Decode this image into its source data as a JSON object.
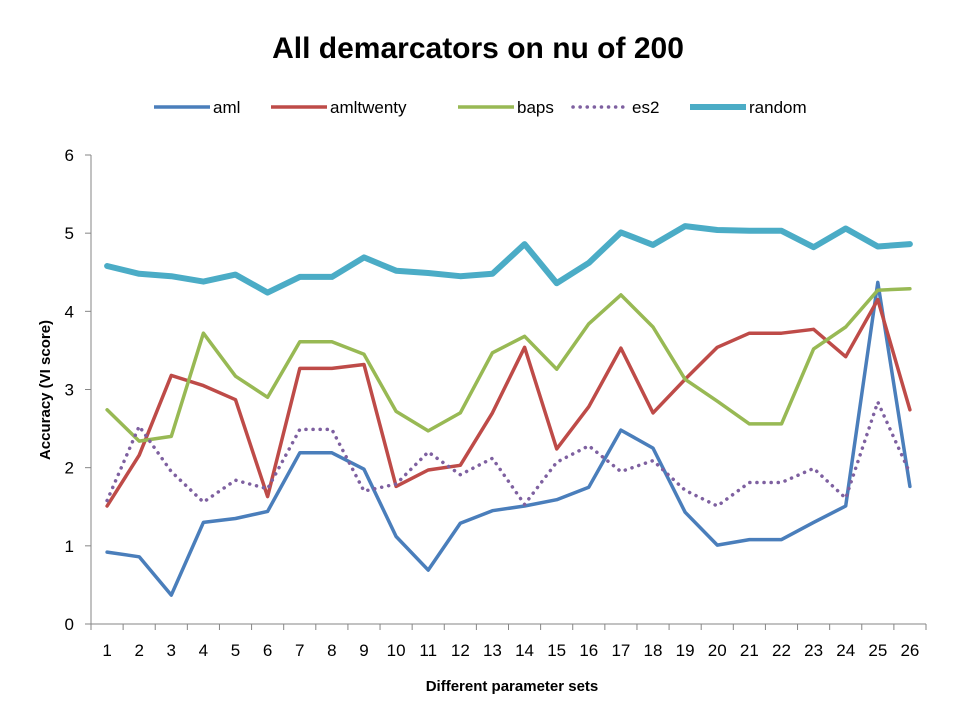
{
  "chart_data": {
    "type": "line",
    "title": "All demarcators on nu of 200",
    "xlabel": "Different parameter sets",
    "ylabel": "Accuracy (VI score)",
    "ylim": [
      0,
      6
    ],
    "yticks": [
      "0",
      "1",
      "2",
      "3",
      "4",
      "5",
      "6"
    ],
    "grid": false,
    "legend_position": "top",
    "categories": [
      "1",
      "2",
      "3",
      "4",
      "5",
      "6",
      "7",
      "8",
      "9",
      "10",
      "11",
      "12",
      "13",
      "14",
      "15",
      "16",
      "17",
      "18",
      "19",
      "20",
      "21",
      "22",
      "23",
      "24",
      "25",
      "26"
    ],
    "series": [
      {
        "name": "aml",
        "color": "#4A7EBB",
        "style": "solid",
        "width": 3.5,
        "values": [
          0.92,
          0.86,
          0.37,
          1.3,
          1.35,
          1.44,
          2.19,
          2.19,
          1.98,
          1.12,
          0.69,
          1.29,
          1.45,
          1.51,
          1.59,
          1.75,
          2.48,
          2.25,
          1.43,
          1.01,
          1.08,
          1.08,
          1.3,
          1.51,
          4.37,
          1.76
        ]
      },
      {
        "name": "amltwenty",
        "color": "#BE4B48",
        "style": "solid",
        "width": 3.5,
        "values": [
          1.51,
          2.16,
          3.18,
          3.05,
          2.87,
          1.63,
          3.27,
          3.27,
          3.32,
          1.76,
          1.97,
          2.03,
          2.7,
          3.54,
          2.24,
          2.78,
          3.53,
          2.7,
          3.13,
          3.54,
          3.72,
          3.72,
          3.77,
          3.42,
          4.15,
          2.74
        ]
      },
      {
        "name": "baps",
        "color": "#98B954",
        "style": "solid",
        "width": 3.5,
        "values": [
          2.74,
          2.34,
          2.4,
          3.72,
          3.17,
          2.9,
          3.61,
          3.61,
          3.45,
          2.72,
          2.47,
          2.7,
          3.47,
          3.68,
          3.26,
          3.84,
          4.21,
          3.8,
          3.13,
          2.85,
          2.56,
          2.56,
          3.52,
          3.8,
          4.27,
          4.29
        ]
      },
      {
        "name": "es2",
        "color": "#7E60A0",
        "style": "dotted",
        "width": 3.5,
        "values": [
          1.58,
          2.53,
          1.95,
          1.56,
          1.84,
          1.73,
          2.49,
          2.49,
          1.7,
          1.79,
          2.2,
          1.91,
          2.12,
          1.53,
          2.07,
          2.28,
          1.95,
          2.09,
          1.71,
          1.51,
          1.81,
          1.81,
          1.99,
          1.61,
          2.84,
          1.93
        ]
      },
      {
        "name": "random",
        "color": "#4BACC6",
        "style": "solid",
        "width": 6,
        "values": [
          4.58,
          4.48,
          4.45,
          4.38,
          4.47,
          4.24,
          4.44,
          4.44,
          4.69,
          4.52,
          4.49,
          4.45,
          4.48,
          4.86,
          4.36,
          4.62,
          5.01,
          4.85,
          5.09,
          5.04,
          5.03,
          5.03,
          4.82,
          5.06,
          4.83,
          4.86
        ]
      }
    ]
  }
}
